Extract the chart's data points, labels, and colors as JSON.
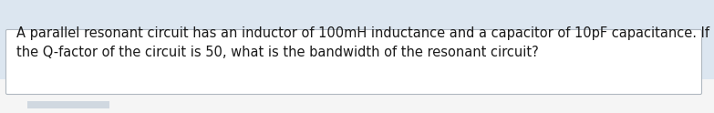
{
  "text_line1": "A parallel resonant circuit has an inductor of 100mH inductance and a capacitor of 10pF capacitance. If",
  "text_line2": "the Q-factor of the circuit is 50, what is the bandwidth of the resonant circuit?",
  "background_top_color": "#dce6f0",
  "background_bottom_color": "#f5f5f5",
  "box_color": "#ffffff",
  "box_border_color": "#b0b8c0",
  "text_color": "#1a1a1a",
  "font_size": 10.5,
  "fig_width": 7.83,
  "fig_height": 1.24,
  "dpi": 100
}
